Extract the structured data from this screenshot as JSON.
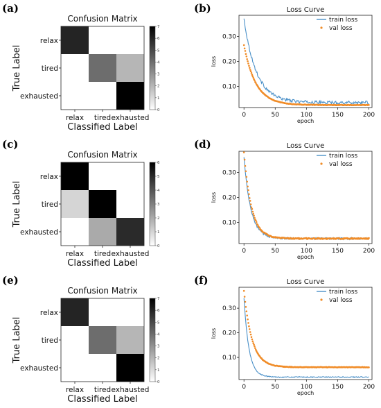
{
  "colors": {
    "train": "#4a90c8",
    "val": "#f08c28"
  },
  "chart_data": [
    {
      "type": "heatmap",
      "panel_label": "(a)",
      "title": "Confusion Matrix",
      "xlabel": "Classified Label",
      "ylabel": "True Label",
      "row_labels": [
        "relax",
        "tired",
        "exhausted"
      ],
      "col_labels": [
        "relax",
        "tired",
        "exhausted"
      ],
      "matrix": [
        [
          6,
          0,
          0
        ],
        [
          0,
          4,
          2
        ],
        [
          0,
          0,
          7
        ]
      ],
      "vmin": 0,
      "vmax": 7,
      "colorbar_ticks": [
        0,
        1,
        2,
        3,
        4,
        5,
        6,
        7
      ]
    },
    {
      "type": "line",
      "panel_label": "(b)",
      "title": "Loss Curve",
      "xlabel": "epoch",
      "ylabel": "loss",
      "xlim": [
        -8,
        205
      ],
      "ylim": [
        0.015,
        0.385
      ],
      "xticks": [
        0,
        50,
        100,
        150,
        200
      ],
      "yticks": [
        0.1,
        0.2,
        0.3
      ],
      "yticklabels": [
        "0.10",
        "0.20",
        "0.30"
      ],
      "legend": "top-right",
      "series": [
        {
          "name": "train loss",
          "style": "line",
          "start": 0.37,
          "floor": 0.035,
          "tau": 20,
          "noise": 0.006
        },
        {
          "name": "val loss",
          "style": "dots",
          "start": 0.265,
          "floor": 0.025,
          "tau": 19,
          "noise": 0.001
        }
      ]
    },
    {
      "type": "heatmap",
      "panel_label": "(c)",
      "title": "Confusion Matrix",
      "xlabel": "Classified Label",
      "ylabel": "True Label",
      "row_labels": [
        "relax",
        "tired",
        "exhausted"
      ],
      "col_labels": [
        "relax",
        "tired",
        "exhausted"
      ],
      "matrix": [
        [
          6,
          0,
          0
        ],
        [
          1,
          6,
          0
        ],
        [
          0,
          2,
          5
        ]
      ],
      "vmin": 0,
      "vmax": 6,
      "colorbar_ticks": [
        0,
        1,
        2,
        3,
        4,
        5,
        6
      ]
    },
    {
      "type": "line",
      "panel_label": "(d)",
      "title": "Loss Curve",
      "xlabel": "epoch",
      "ylabel": "loss",
      "xlim": [
        -8,
        205
      ],
      "ylim": [
        0.015,
        0.385
      ],
      "xticks": [
        0,
        50,
        100,
        150,
        200
      ],
      "yticks": [
        0.1,
        0.2,
        0.3
      ],
      "yticklabels": [
        "0.10",
        "0.20",
        "0.30"
      ],
      "legend": "top-right",
      "series": [
        {
          "name": "train loss",
          "style": "line",
          "start": 0.36,
          "floor": 0.035,
          "tau": 11,
          "noise": 0.004
        },
        {
          "name": "val loss",
          "style": "dots",
          "start": 0.38,
          "floor": 0.035,
          "tau": 12,
          "noise": 0.002
        }
      ]
    },
    {
      "type": "heatmap",
      "panel_label": "(e)",
      "title": "Confusion Matrix",
      "xlabel": "Classified Label",
      "ylabel": "True Label",
      "row_labels": [
        "relax",
        "tired",
        "exhausted"
      ],
      "col_labels": [
        "relax",
        "tired",
        "exhausted"
      ],
      "matrix": [
        [
          6,
          0,
          0
        ],
        [
          0,
          4,
          2
        ],
        [
          0,
          0,
          7
        ]
      ],
      "vmin": 0,
      "vmax": 7,
      "colorbar_ticks": [
        0,
        1,
        2,
        3,
        4,
        5,
        6,
        7
      ]
    },
    {
      "type": "line",
      "panel_label": "(f)",
      "title": "Loss Curve",
      "xlabel": "epoch",
      "ylabel": "loss",
      "xlim": [
        -8,
        205
      ],
      "ylim": [
        0.01,
        0.385
      ],
      "xticks": [
        0,
        50,
        100,
        150,
        200
      ],
      "yticks": [
        0.1,
        0.2,
        0.3
      ],
      "yticklabels": [
        "0.10",
        "0.20",
        "0.30"
      ],
      "legend": "top-right",
      "series": [
        {
          "name": "train loss",
          "style": "line",
          "start": 0.34,
          "floor": 0.02,
          "tau": 8,
          "noise": 0.002
        },
        {
          "name": "val loss",
          "style": "dots",
          "start": 0.37,
          "floor": 0.06,
          "tau": 13,
          "noise": 0.001
        }
      ]
    }
  ]
}
